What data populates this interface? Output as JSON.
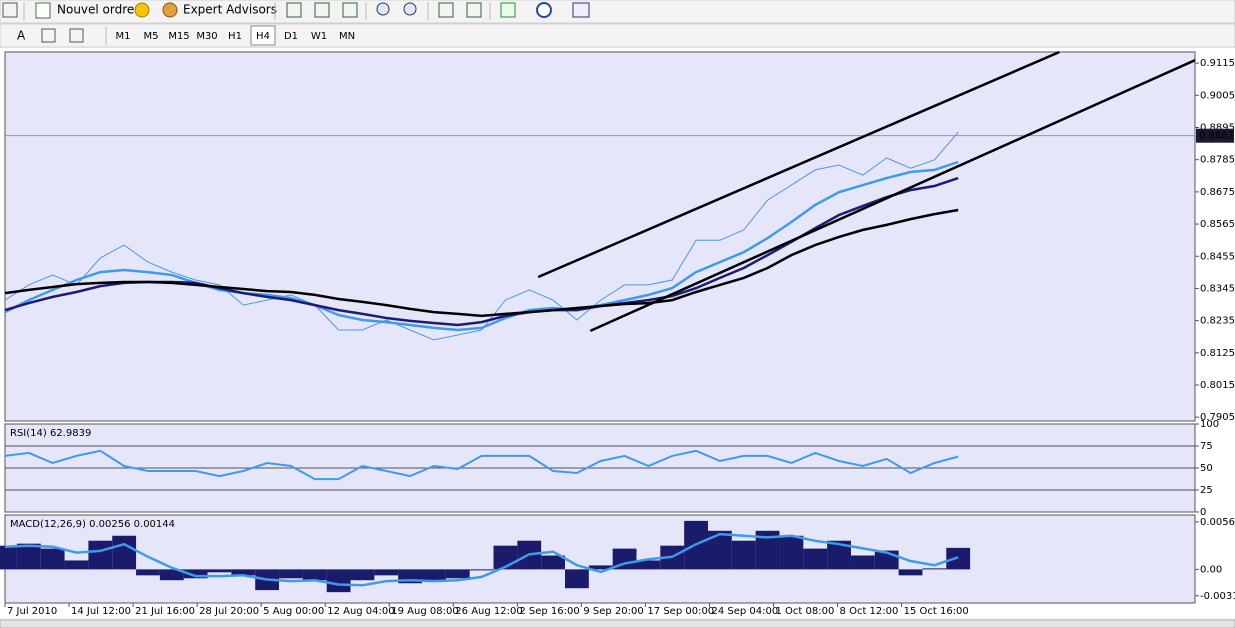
{
  "toolbar": {
    "buttons": [
      "Nouvel ordre",
      "Expert Advisors"
    ],
    "text_tool": "A",
    "timeframes": [
      "M1",
      "M5",
      "M15",
      "M30",
      "H1",
      "H4",
      "D1",
      "W1",
      "MN"
    ],
    "selected_timeframe": "H4"
  },
  "chart_data": [
    {
      "type": "line",
      "x": [
        0,
        16,
        32,
        48,
        64,
        80,
        96,
        112,
        128,
        144,
        160,
        176,
        192,
        208,
        224,
        240,
        256,
        272,
        288,
        304,
        320,
        336,
        352,
        368,
        384,
        400,
        416,
        432,
        448,
        464,
        480,
        496,
        512,
        528,
        544,
        560,
        576,
        592,
        608,
        624,
        640
      ],
      "xlim": [
        0,
        799
      ],
      "xticks": [
        {
          "value": 0,
          "label": "7 Jul 2010"
        },
        {
          "value": 43,
          "label": "14 Jul 12:00"
        },
        {
          "value": 86,
          "label": "21 Jul 16:00"
        },
        {
          "value": 129,
          "label": "28 Jul 20:00"
        },
        {
          "value": 172,
          "label": "5 Aug 00:00"
        },
        {
          "value": 215,
          "label": "12 Aug 04:00"
        },
        {
          "value": 258,
          "label": "19 Aug 08:00"
        },
        {
          "value": 301,
          "label": "26 Aug 12:00"
        },
        {
          "value": 344,
          "label": "2 Sep 16:00"
        },
        {
          "value": 387,
          "label": "9 Sep 20:00"
        },
        {
          "value": 430,
          "label": "17 Sep 00:00"
        },
        {
          "value": 473,
          "label": "24 Sep 04:00"
        },
        {
          "value": 516,
          "label": "1 Oct 08:00"
        },
        {
          "value": 559,
          "label": "8 Oct 12:00"
        },
        {
          "value": 602,
          "label": "15 Oct 16:00"
        }
      ],
      "ylim": [
        0.7892,
        0.9153
      ],
      "yticks": [
        0.9115,
        0.9005,
        0.8895,
        0.8785,
        0.8675,
        0.8565,
        0.8455,
        0.8345,
        0.8235,
        0.8125,
        0.8015,
        0.7905
      ],
      "current_price": 0.8867,
      "series": [
        {
          "color": "#4a98e4",
          "width": 1,
          "values": [
            0.8305,
            0.8357,
            0.8391,
            0.8357,
            0.8449,
            0.8493,
            0.8435,
            0.8401,
            0.8374,
            0.8357,
            0.8288,
            0.8305,
            0.8323,
            0.8288,
            0.8203,
            0.8203,
            0.8237,
            0.8203,
            0.8169,
            0.8186,
            0.8203,
            0.8305,
            0.834,
            0.8305,
            0.8237,
            0.8305,
            0.8357,
            0.8357,
            0.8374,
            0.851,
            0.851,
            0.8545,
            0.8647,
            0.8698,
            0.875,
            0.8767,
            0.8732,
            0.8791,
            0.8756,
            0.8784,
            0.8879
          ]
        },
        {
          "color": "#3d9be9",
          "width": 2.5,
          "values": [
            0.8264,
            0.8305,
            0.834,
            0.8374,
            0.8401,
            0.8408,
            0.8401,
            0.8391,
            0.8364,
            0.834,
            0.8329,
            0.8323,
            0.8312,
            0.8288,
            0.8254,
            0.8237,
            0.823,
            0.822,
            0.821,
            0.8203,
            0.821,
            0.8244,
            0.8271,
            0.8278,
            0.8271,
            0.8288,
            0.8305,
            0.8323,
            0.8346,
            0.8401,
            0.8435,
            0.8469,
            0.8517,
            0.8572,
            0.863,
            0.8674,
            0.8698,
            0.8722,
            0.8743,
            0.875,
            0.8777
          ]
        },
        {
          "color": "#1c1c78",
          "width": 2.5,
          "values": [
            0.8271,
            0.8295,
            0.8316,
            0.8333,
            0.8353,
            0.8364,
            0.8367,
            0.8367,
            0.8364,
            0.8346,
            0.8329,
            0.8316,
            0.8305,
            0.8288,
            0.8271,
            0.8258,
            0.8244,
            0.8234,
            0.8227,
            0.822,
            0.823,
            0.8251,
            0.8264,
            0.8271,
            0.8271,
            0.8285,
            0.8295,
            0.8305,
            0.8319,
            0.8346,
            0.8381,
            0.8415,
            0.8459,
            0.8504,
            0.8551,
            0.8596,
            0.8627,
            0.8657,
            0.8681,
            0.8695,
            0.8722
          ]
        },
        {
          "color": "#000000",
          "width": 2.5,
          "values": [
            0.8329,
            0.834,
            0.835,
            0.836,
            0.8364,
            0.8367,
            0.8367,
            0.8364,
            0.8357,
            0.835,
            0.8343,
            0.8336,
            0.8333,
            0.8323,
            0.8309,
            0.8299,
            0.8288,
            0.8275,
            0.8264,
            0.8258,
            0.8251,
            0.8258,
            0.8264,
            0.8271,
            0.8278,
            0.8285,
            0.8292,
            0.8295,
            0.8305,
            0.8333,
            0.8357,
            0.8381,
            0.8415,
            0.8459,
            0.8493,
            0.8521,
            0.8545,
            0.8562,
            0.8582,
            0.8599,
            0.8613
          ]
        }
      ],
      "trendlines": [
        {
          "x": [
            358,
            708
          ],
          "y": [
            0.8384,
            0.9153
          ]
        },
        {
          "x": [
            393,
            799
          ],
          "y": [
            0.82,
            0.9125
          ]
        }
      ]
    },
    {
      "type": "line",
      "title": "RSI(14) 62.9839",
      "ylim": [
        0,
        100
      ],
      "yticks": [
        100,
        75,
        50,
        25,
        0
      ],
      "levels": [
        75,
        50,
        25
      ],
      "series": [
        {
          "color": "#3d9be9",
          "width": 2,
          "values": [
            63.8,
            67.2,
            55.7,
            63.8,
            69.5,
            52.3,
            46.6,
            46.6,
            46.6,
            40.8,
            46.6,
            55.7,
            52.3,
            37.4,
            37.4,
            52.3,
            46.6,
            40.8,
            52.3,
            48.9,
            63.8,
            63.8,
            63.8,
            46.6,
            44.3,
            58.0,
            63.8,
            52.3,
            63.8,
            69.5,
            58.0,
            63.8,
            63.8,
            55.7,
            67.2,
            58.0,
            52.3,
            60.3,
            44.3,
            55.7,
            62.98
          ]
        }
      ]
    },
    {
      "type": "bar",
      "title": "MACD(12,26,9) 0.00256 0.00144",
      "ylim": [
        -0.004,
        0.00647
      ],
      "yticks": [
        0.00565,
        {
          "value": 0,
          "label": "0.00"
        },
        -0.00314
      ],
      "color": "#1b1b6b",
      "values": [
        0.00282,
        0.00306,
        0.00247,
        0.00106,
        0.00341,
        0.004,
        -0.00071,
        -0.00129,
        -0.00106,
        -0.00035,
        -0.00071,
        -0.00247,
        -0.00106,
        -0.00129,
        -0.00271,
        -0.00129,
        -0.00071,
        -0.00165,
        -0.00129,
        -0.00106,
        -0.00012,
        0.00282,
        0.00341,
        0.00165,
        -0.00224,
        0.00047,
        0.00247,
        0.00106,
        0.00282,
        0.00577,
        0.00459,
        0.00341,
        0.00459,
        0.004,
        0.00247,
        0.00341,
        0.00165,
        0.00224,
        -0.00071,
        0.00012,
        0.00256
      ],
      "signal": {
        "color": "#3d9be9",
        "values": [
          0.0027,
          0.0028,
          0.0027,
          0.002,
          0.0022,
          0.003,
          0.0015,
          0.0002,
          -0.0008,
          -0.0008,
          -0.0007,
          -0.0012,
          -0.0014,
          -0.0013,
          -0.0018,
          -0.0019,
          -0.0014,
          -0.0013,
          -0.0014,
          -0.0013,
          -0.0009,
          0.0003,
          0.0018,
          0.0021,
          0.0005,
          -0.0003,
          0.0007,
          0.0012,
          0.0015,
          0.003,
          0.0042,
          0.004,
          0.0038,
          0.004,
          0.0034,
          0.003,
          0.0025,
          0.002,
          0.001,
          0.0005,
          0.00144
        ]
      }
    }
  ]
}
